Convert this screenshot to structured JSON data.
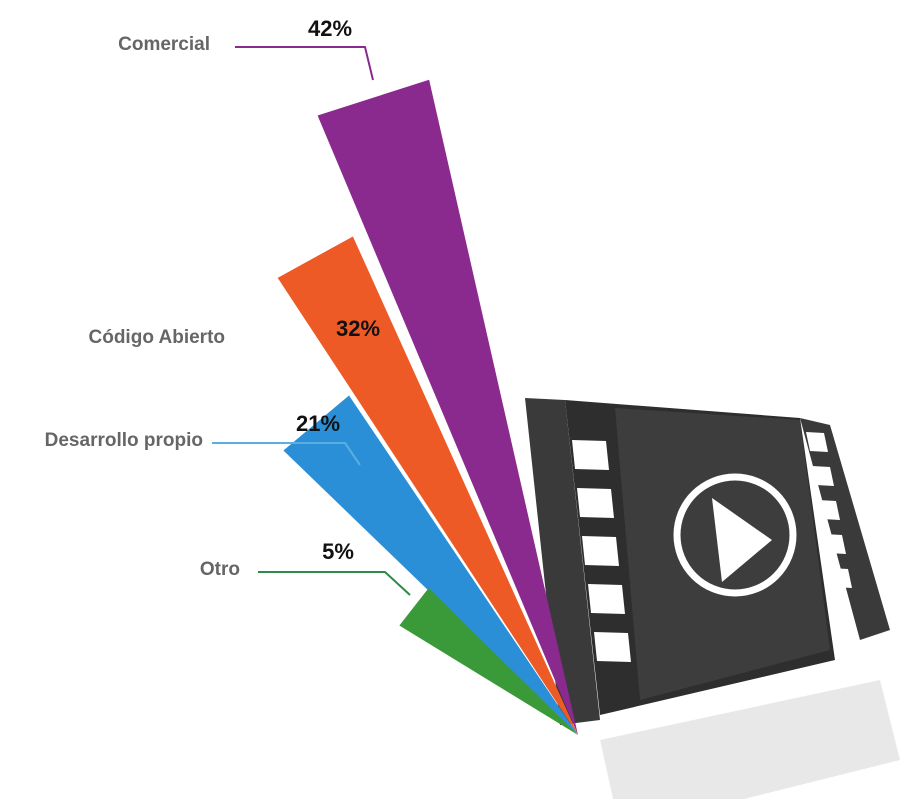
{
  "chart_data": {
    "type": "beam",
    "categories": [
      "Comercial",
      "Código Abierto",
      "Desarrollo propio",
      "Otro"
    ],
    "series": [
      {
        "values": [
          42,
          32,
          21,
          5
        ],
        "value_labels": [
          "42%",
          "32%",
          "21%",
          "5%"
        ],
        "colors": [
          "#8a2a8f",
          "#ee5a26",
          "#2a8fd6",
          "#3a9a3a"
        ]
      }
    ]
  }
}
